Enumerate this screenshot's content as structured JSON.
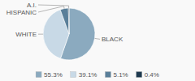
{
  "chart_data": {
    "type": "pie",
    "categories": [
      "BLACK",
      "WHITE",
      "HISPANIC",
      "A.I."
    ],
    "values": [
      55.3,
      39.1,
      5.1,
      0.4
    ],
    "value_labels": [
      "55.3%",
      "39.1%",
      "5.1%",
      "0.4%"
    ],
    "colors": [
      "#8baabf",
      "#c8d9e6",
      "#5a7f99",
      "#1e3a4f"
    ],
    "legend": "bottom"
  }
}
